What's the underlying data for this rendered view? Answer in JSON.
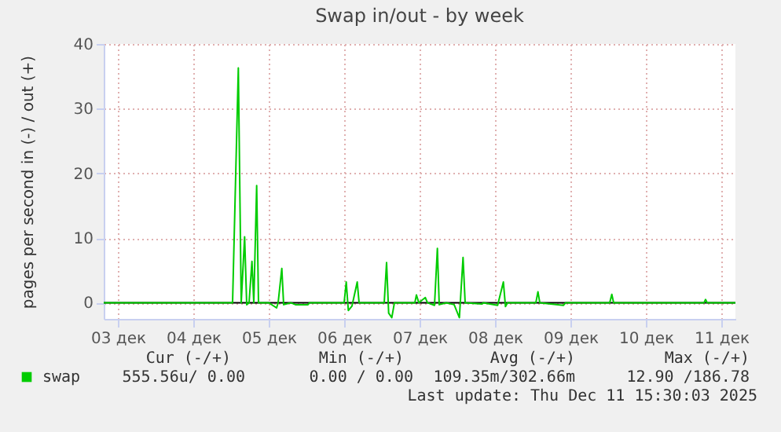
{
  "chart_data": {
    "type": "line",
    "title": "Swap in/out - by week",
    "ylabel": "pages per second in (-) / out (+)",
    "xlim": [
      "2025-12-03T07:30",
      "2025-12-11T16:30"
    ],
    "xticks": [
      {
        "value": "2025-12-03T12:00",
        "label": "03 дек"
      },
      {
        "value": "2025-12-04T12:00",
        "label": "04 дек"
      },
      {
        "value": "2025-12-05T12:00",
        "label": "05 дек"
      },
      {
        "value": "2025-12-06T12:00",
        "label": "06 дек"
      },
      {
        "value": "2025-12-07T12:00",
        "label": "07 дек"
      },
      {
        "value": "2025-12-08T12:00",
        "label": "08 дек"
      },
      {
        "value": "2025-12-09T12:00",
        "label": "09 дек"
      },
      {
        "value": "2025-12-10T12:00",
        "label": "10 дек"
      },
      {
        "value": "2025-12-11T12:00",
        "label": "11 дек"
      }
    ],
    "ylim": [
      -2.5,
      40
    ],
    "yticks": [
      0,
      10,
      20,
      30,
      40
    ],
    "grid": true,
    "legend": "bottom",
    "marker": "none",
    "line_style": "solid",
    "ref_lines": [
      {
        "axis": "y",
        "value": 0,
        "color": "#000000"
      }
    ],
    "series": [
      {
        "name": "swap",
        "color": "#00cc00",
        "x": [
          "2025-12-03T07:30",
          "2025-12-05T00:30",
          "2025-12-05T02:20",
          "2025-12-05T03:15",
          "2025-12-05T04:20",
          "2025-12-05T05:00",
          "2025-12-05T05:45",
          "2025-12-05T06:40",
          "2025-12-05T07:15",
          "2025-12-05T08:10",
          "2025-12-05T08:45",
          "2025-12-05T12:00",
          "2025-12-05T14:30",
          "2025-12-05T15:00",
          "2025-12-05T16:10",
          "2025-12-05T16:45",
          "2025-12-05T19:00",
          "2025-12-05T20:30",
          "2025-12-06T00:30",
          "2025-12-06T01:00",
          "2025-12-06T12:00",
          "2025-12-06T12:40",
          "2025-12-06T13:20",
          "2025-12-06T14:30",
          "2025-12-06T16:10",
          "2025-12-06T16:45",
          "2025-12-07T00:45",
          "2025-12-07T01:30",
          "2025-12-07T02:10",
          "2025-12-07T03:10",
          "2025-12-07T04:00",
          "2025-12-07T10:30",
          "2025-12-07T11:00",
          "2025-12-07T11:45",
          "2025-12-07T13:50",
          "2025-12-07T14:30",
          "2025-12-07T16:45",
          "2025-12-07T17:40",
          "2025-12-07T18:15",
          "2025-12-07T20:30",
          "2025-12-07T23:00",
          "2025-12-08T00:40",
          "2025-12-08T01:50",
          "2025-12-08T02:30",
          "2025-12-08T07:50",
          "2025-12-08T08:15",
          "2025-12-08T12:50",
          "2025-12-08T14:40",
          "2025-12-08T15:20",
          "2025-12-08T16:00",
          "2025-12-09T01:00",
          "2025-12-09T01:40",
          "2025-12-09T02:15",
          "2025-12-09T09:45",
          "2025-12-09T10:30",
          "2025-12-10T00:30",
          "2025-12-10T01:10",
          "2025-12-10T01:45",
          "2025-12-11T06:30",
          "2025-12-11T07:00",
          "2025-12-11T07:30",
          "2025-12-11T16:30"
        ],
        "values": [
          0,
          0,
          36.3,
          0,
          10.2,
          -0.3,
          0,
          6.4,
          0,
          18.1,
          0,
          0,
          -0.8,
          0,
          5.3,
          -0.3,
          0,
          -0.3,
          -0.3,
          0,
          0,
          3.2,
          -1.2,
          -0.5,
          3.2,
          0,
          0,
          6.2,
          -1.6,
          -2.3,
          0,
          0,
          1.2,
          0,
          0.8,
          0,
          -0.4,
          8.4,
          -0.3,
          0,
          -0.3,
          -2.3,
          7.0,
          0,
          -0.2,
          0,
          -0.4,
          3.2,
          -0.6,
          0,
          0,
          1.7,
          0,
          -0.4,
          0,
          0,
          1.3,
          0,
          0,
          0.5,
          0,
          0
        ]
      }
    ],
    "annotations": [
      "Cur (-/+)",
      "Min (-/+)",
      "Avg (-/+)",
      "Max (-/+)",
      "555.56u/  0.00",
      "0.00 /  0.00",
      "109.35m/302.66m",
      "12.90 /186.78",
      "Last update: Thu Dec 11 15:30:03 2025"
    ]
  }
}
